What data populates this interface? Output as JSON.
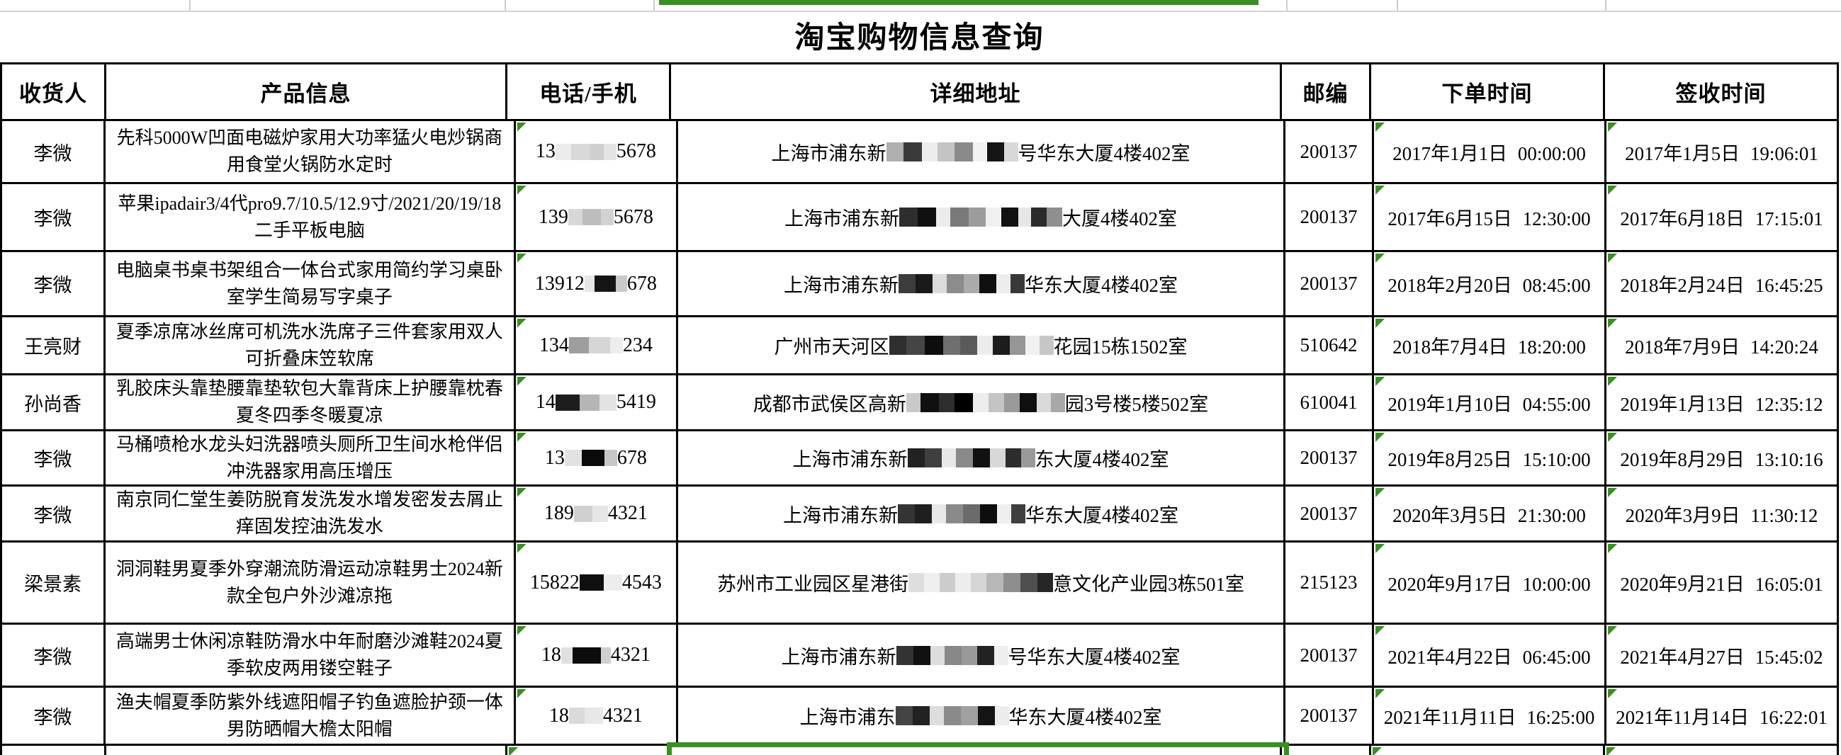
{
  "title": "淘宝购物信息查询",
  "columns": [
    "收货人",
    "产品信息",
    "电话/手机",
    "详细地址",
    "邮编",
    "下单时间",
    "签收时间"
  ],
  "colors": {
    "selection_green": "#3a8e22",
    "table_border": "#000000",
    "background": "#ffffff"
  },
  "rows": [
    {
      "recipient": "李微",
      "product": "先科5000W凹面电磁炉家用大功率猛火电炒锅商用食堂火锅防水定时",
      "phone": {
        "prefix": "13",
        "blocks": [
          [
            "#ececec",
            22
          ],
          [
            "#d9d9d9",
            26
          ],
          [
            "#cfcfcf",
            20
          ],
          [
            "#e4e4e4",
            18
          ]
        ],
        "suffix": "5678"
      },
      "address": {
        "prefix": "上海市浦东新",
        "blocks": [
          [
            "#b0b0b0",
            24
          ],
          [
            "#3a3a3a",
            26
          ],
          [
            "#ededed",
            22
          ],
          [
            "#c4c4c4",
            24
          ],
          [
            "#8a8a8a",
            26
          ],
          [
            "#f2f2f2",
            20
          ],
          [
            "#141414",
            24
          ],
          [
            "#d8d8d8",
            20
          ]
        ],
        "suffix": "号华东大厦4楼402室"
      },
      "zip": "200137",
      "order_time": "2017年1月1日 00:00:00",
      "sign_time": "2017年1月5日 19:06:01"
    },
    {
      "recipient": "李微",
      "product": "苹果ipadair3/4代pro9.7/10.5/12.9寸/2021/20/19/18二手平板电脑",
      "phone": {
        "prefix": "139",
        "blocks": [
          [
            "#d8d8d8",
            20
          ],
          [
            "#bdbdbd",
            26
          ],
          [
            "#d2d2d2",
            18
          ]
        ],
        "suffix": "5678"
      },
      "address": {
        "prefix": "上海市浦东新",
        "blocks": [
          [
            "#2e2e2e",
            26
          ],
          [
            "#101010",
            26
          ],
          [
            "#ececec",
            20
          ],
          [
            "#7a7a7a",
            26
          ],
          [
            "#9c9c9c",
            24
          ],
          [
            "#f0f0f0",
            22
          ],
          [
            "#121212",
            24
          ],
          [
            "#e6e6e6",
            18
          ],
          [
            "#2b2b2b",
            22
          ],
          [
            "#8f8f8f",
            22
          ]
        ],
        "suffix": "大厦4楼402室"
      },
      "zip": "200137",
      "order_time": "2017年6月15日 12:30:00",
      "sign_time": "2017年6月18日 17:15:01"
    },
    {
      "recipient": "李微",
      "product": "电脑桌书桌书架组合一体台式家用简约学习桌卧室学生简易写字桌子",
      "phone": {
        "prefix": "13912",
        "blocks": [
          [
            "#e6e6e6",
            14
          ],
          [
            "#141414",
            30
          ],
          [
            "#c9c9c9",
            16
          ]
        ],
        "suffix": "678"
      },
      "address": {
        "prefix": "上海市浦东新",
        "blocks": [
          [
            "#3c3c3c",
            24
          ],
          [
            "#1a1a1a",
            24
          ],
          [
            "#dcdcdc",
            20
          ],
          [
            "#8c8c8c",
            24
          ],
          [
            "#ababab",
            22
          ],
          [
            "#101010",
            24
          ],
          [
            "#ededed",
            20
          ],
          [
            "#383838",
            20
          ]
        ],
        "suffix": "华东大厦4楼402室"
      },
      "zip": "200137",
      "order_time": "2018年2月20日 08:45:00",
      "sign_time": "2018年2月24日 16:45:25"
    },
    {
      "recipient": "王亮财",
      "product": "夏季凉席冰丝席可机洗水洗席子三件套家用双人可折叠床笠软席",
      "phone": {
        "prefix": "134",
        "blocks": [
          [
            "#9e9e9e",
            28
          ],
          [
            "#d6d6d6",
            30
          ],
          [
            "#ededed",
            18
          ]
        ],
        "suffix": "234"
      },
      "address": {
        "prefix": "广州市天河区",
        "blocks": [
          [
            "#2f2f2f",
            24
          ],
          [
            "#454545",
            26
          ],
          [
            "#0d0d0d",
            26
          ],
          [
            "#6f6f6f",
            24
          ],
          [
            "#5a5a5a",
            24
          ],
          [
            "#ececec",
            22
          ],
          [
            "#1c1c1c",
            24
          ],
          [
            "#969696",
            22
          ],
          [
            "#f1f1f1",
            20
          ],
          [
            "#c7c7c7",
            20
          ]
        ],
        "suffix": "花园15栋1502室"
      },
      "zip": "510642",
      "order_time": "2018年7月4日 18:20:00",
      "sign_time": "2018年7月9日 14:20:24"
    },
    {
      "recipient": "孙尚香",
      "product": "乳胶床头靠垫腰靠垫软包大靠背床上护腰靠枕春夏冬四季冬暖夏凉",
      "phone": {
        "prefix": "14",
        "blocks": [
          [
            "#1d1d1d",
            34
          ],
          [
            "#b5b5b5",
            28
          ],
          [
            "#e3e3e3",
            24
          ]
        ],
        "suffix": "5419"
      },
      "address": {
        "prefix": "成都市武侯区高新",
        "blocks": [
          [
            "#c9c9c9",
            20
          ],
          [
            "#101010",
            26
          ],
          [
            "#2d2d2d",
            22
          ],
          [
            "#000000",
            26
          ],
          [
            "#ededed",
            22
          ],
          [
            "#c4c4c4",
            22
          ],
          [
            "#9a9a9a",
            22
          ],
          [
            "#0f0f0f",
            24
          ],
          [
            "#dadada",
            20
          ],
          [
            "#a8a8a8",
            20
          ]
        ],
        "suffix": "园3号楼5楼502室"
      },
      "zip": "610041",
      "order_time": "2019年1月10日 04:55:00",
      "sign_time": "2019年1月13日 12:35:12"
    },
    {
      "recipient": "李微",
      "product": "马桶喷枪水龙头妇洗器喷头厕所卫生间水枪伴侣冲洗器家用高压增压",
      "phone": {
        "prefix": "13",
        "blocks": [
          [
            "#e2e2e2",
            24
          ],
          [
            "#0a0a0a",
            32
          ],
          [
            "#c7c7c7",
            18
          ]
        ],
        "suffix": "678"
      },
      "address": {
        "prefix": "上海市浦东新",
        "blocks": [
          [
            "#222222",
            24
          ],
          [
            "#3f3f3f",
            24
          ],
          [
            "#e8e8e8",
            20
          ],
          [
            "#8a8a8a",
            24
          ],
          [
            "#111111",
            24
          ],
          [
            "#d8d8d8",
            22
          ],
          [
            "#2c2c2c",
            22
          ],
          [
            "#9a9a9a",
            20
          ]
        ],
        "suffix": "东大厦4楼402室"
      },
      "zip": "200137",
      "order_time": "2019年8月25日 15:10:00",
      "sign_time": "2019年8月29日 13:10:16"
    },
    {
      "recipient": "李微",
      "product": "南京同仁堂生姜防脱育发洗发水增发密发去屑止痒固发控油洗发水",
      "phone": {
        "prefix": "189",
        "blocks": [
          [
            "#d0d0d0",
            26
          ],
          [
            "#e6e6e6",
            22
          ]
        ],
        "suffix": "4321"
      },
      "address": {
        "prefix": "上海市浦东新",
        "blocks": [
          [
            "#343434",
            24
          ],
          [
            "#1f1f1f",
            24
          ],
          [
            "#e8e8e8",
            20
          ],
          [
            "#8a8a8a",
            24
          ],
          [
            "#6b6b6b",
            24
          ],
          [
            "#0e0e0e",
            24
          ],
          [
            "#efefef",
            20
          ],
          [
            "#3f3f3f",
            20
          ]
        ],
        "suffix": "华东大厦4楼402室"
      },
      "zip": "200137",
      "order_time": "2020年3月5日 21:30:00",
      "sign_time": "2020年3月9日 11:30:12"
    },
    {
      "recipient": "梁景素",
      "product": "洞洞鞋男夏季外穿潮流防滑运动凉鞋男士2024新款全包户外沙滩凉拖",
      "phone": {
        "prefix": "15822",
        "blocks": [
          [
            "#0f0f0f",
            34
          ],
          [
            "#ededed",
            26
          ]
        ],
        "suffix": "4543"
      },
      "address": {
        "prefix": "苏州市工业园区星港街",
        "blocks": [
          [
            "#dedede",
            22
          ],
          [
            "#efefef",
            22
          ],
          [
            "#cccccc",
            22
          ],
          [
            "#ededed",
            22
          ],
          [
            "#d6d6d6",
            22
          ],
          [
            "#b8b8b8",
            24
          ],
          [
            "#8e8e8e",
            24
          ],
          [
            "#4f4f4f",
            24
          ],
          [
            "#262626",
            22
          ]
        ],
        "suffix": "意文化产业园3栋501室"
      },
      "zip": "215123",
      "order_time": "2020年9月17日 10:00:00",
      "sign_time": "2020年9月21日 16:05:01"
    },
    {
      "recipient": "李微",
      "product": "高端男士休闲凉鞋防滑水中年耐磨沙滩鞋2024夏季软皮两用镂空鞋子",
      "phone": {
        "prefix": "18",
        "blocks": [
          [
            "#e0e0e0",
            16
          ],
          [
            "#0c0c0c",
            40
          ],
          [
            "#cfcfcf",
            14
          ]
        ],
        "suffix": "4321"
      },
      "address": {
        "prefix": "上海市浦东新",
        "blocks": [
          [
            "#333333",
            24
          ],
          [
            "#111111",
            24
          ],
          [
            "#dddddd",
            20
          ],
          [
            "#888888",
            24
          ],
          [
            "#999999",
            22
          ],
          [
            "#222222",
            24
          ],
          [
            "#eeeeee",
            20
          ]
        ],
        "suffix": "号华东大厦4楼402室"
      },
      "zip": "200137",
      "order_time": "2021年4月22日 06:45:00",
      "sign_time": "2021年4月27日 15:45:02"
    },
    {
      "recipient": "李微",
      "product": "渔夫帽夏季防紫外线遮阳帽子钓鱼遮脸护颈一体男防晒帽大檐太阳帽",
      "phone": {
        "prefix": "18",
        "blocks": [
          [
            "#dadada",
            22
          ],
          [
            "#e8e8e8",
            26
          ]
        ],
        "suffix": "4321"
      },
      "address": {
        "prefix": "上海市浦东",
        "blocks": [
          [
            "#444444",
            24
          ],
          [
            "#222222",
            24
          ],
          [
            "#dddddd",
            20
          ],
          [
            "#8a8a8a",
            24
          ],
          [
            "#a0a0a0",
            24
          ],
          [
            "#141414",
            24
          ],
          [
            "#ececec",
            20
          ]
        ],
        "suffix": "华东大厦4楼402室"
      },
      "zip": "200137",
      "order_time": "2021年11月11日 16:25:00",
      "sign_time": "2021年11月14日 16:22:01"
    }
  ]
}
